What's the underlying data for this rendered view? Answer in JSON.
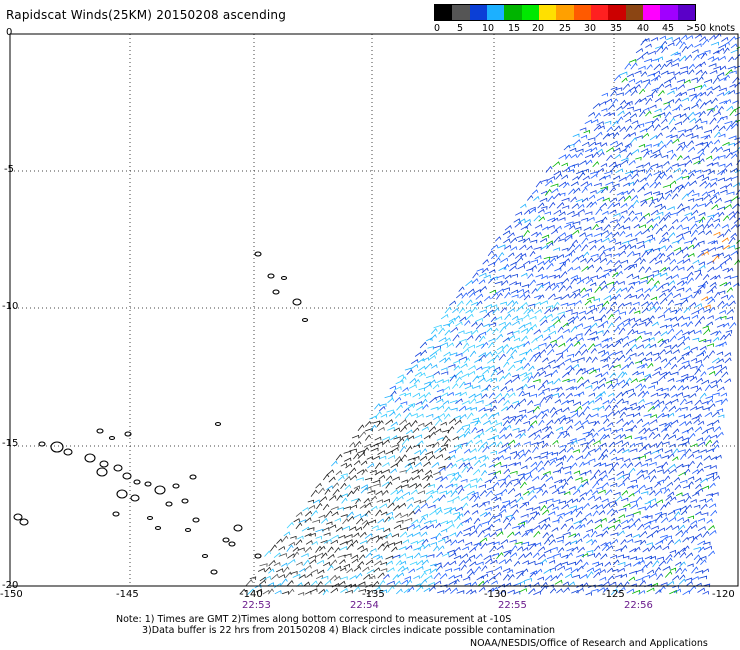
{
  "title": "Rapidscat Winds(25KM) 20150208 ascending",
  "legend": {
    "colors": [
      "#000000",
      "#555555",
      "#0b3fd6",
      "#1cb0ff",
      "#00b400",
      "#00e800",
      "#ffe000",
      "#ffa000",
      "#ff5a00",
      "#ff2020",
      "#cc0000",
      "#8b4513",
      "#ff00ff",
      "#a000ff",
      "#5a00c8"
    ],
    "labels": [
      "0",
      "5",
      "10",
      "15",
      "20",
      "25",
      "30",
      "35",
      "40",
      "45",
      ">50 knots"
    ]
  },
  "axes": {
    "y_labels": [
      "0",
      "-5",
      "-10",
      "-15",
      "-20"
    ],
    "x_labels": [
      "-150",
      "-145",
      "-140",
      "-135",
      "-130",
      "-125",
      "-120"
    ],
    "time_labels": [
      "22:53",
      "22:54",
      "22:55",
      "22:56"
    ]
  },
  "notes": {
    "line1": "Note: 1) Times are GMT 2)Times along bottom correspond to measurement at -10S",
    "line2": "3)Data buffer is 22 hrs from 20150208 4) Black circles indicate possible contamination"
  },
  "credit": "NOAA/NESDIS/Office of Research and Applications"
}
